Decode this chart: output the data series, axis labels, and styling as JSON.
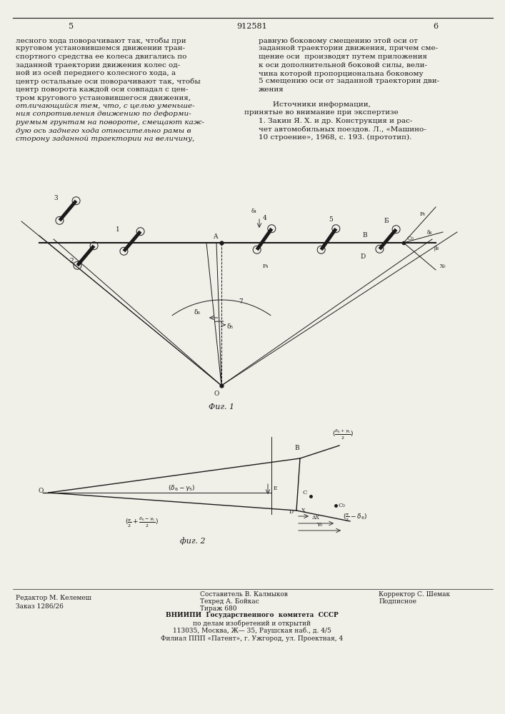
{
  "bg_color": "#f0efe8",
  "black": "#1a1a1a",
  "page_left": "5",
  "page_center": "912581",
  "page_right": "6",
  "fig1_caption": "Фиг. 1",
  "fig2_caption": "фиг. 2",
  "text_left_lines": [
    "лесного хода поворачивают так, чтобы при",
    "круговом установившемся движении тран-",
    "спортного средства ее колеса двигались по",
    "заданной траектории движения колес од-",
    "ной из осей переднего колесного хода, а",
    "центр остальные оси поворачивают так, чтобы",
    "центр поворота каждой оси совпадал с цен-",
    "тром кругового установившегося движения,",
    "отличающийся тем, что, с целью уменьше-",
    "ния сопротивления движению по деформи-",
    "руемым грунтам на повороте, смещают каж-",
    "дую ось заднего хода относительно рамы в",
    "сторону заданной траектории на величину,"
  ],
  "text_right_lines": [
    "равную боковому смещению этой оси от",
    "заданной траектории движения, причем сме-",
    "щение оси  производят путем приложения",
    "к оси дополнительной боковой силы, вели-",
    "чина которой пропорциональна боковому",
    "5 смещению оси от заданной траектории дви-",
    "жения"
  ],
  "text_sources_lines": [
    "Источники информации,",
    "принятые во внимание при экспертизе",
    "1. Закин Я. Х. и др. Конструкция и рас-",
    "чет автомобильных поездов. Л., «Машино-",
    "10 строение», 1968, с. 193. (прототип)."
  ],
  "footer_left1": "Редактор М. Келемеш",
  "footer_left2": "Заказ 1286/26",
  "footer_mid0": "Составитель В. Калмыков",
  "footer_mid1": "Техред А. Бойкас",
  "footer_mid2": "Тираж 680",
  "footer_right1": "Корректор С. Шемак",
  "footer_right2": "Подписное",
  "footer_vniip1": "ВНИИПИ  Государственного  комитета  СССР",
  "footer_vniip2": "по делам изобретений и открытий",
  "footer_vniip3": "113035, Москва, Ж— 35, Раушская наб., д. 4/5",
  "footer_vniip4": "Филиал ППП «Патент», г. Ужгород, ул. Проектная, 4"
}
